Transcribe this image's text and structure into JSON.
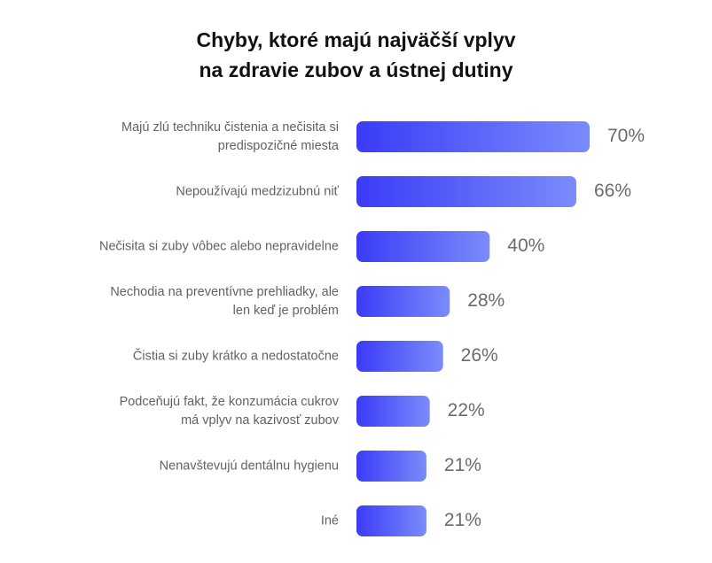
{
  "chart_data": {
    "type": "bar",
    "orientation": "horizontal",
    "title_lines": [
      "Chyby, ktoré majú najväčší vplyv",
      "na zdravie zubov a ústnej dutiny"
    ],
    "categories": [
      [
        "Majú zlú techniku čistenia a nečisita si",
        "predispozičné miesta"
      ],
      [
        "Nepoužívajú medzizubnú niť"
      ],
      [
        "Nečisita si zuby vôbec alebo nepravidelne"
      ],
      [
        "Nechodia na preventívne prehliadky, ale",
        "len keď je problém"
      ],
      [
        "Čistia si zuby krátko a nedostatočne"
      ],
      [
        "Podceňujú fakt, že konzumácia cukrov",
        "má vplyv na kazivosť zubov"
      ],
      [
        "Nenavštevujú dentálnu hygienu"
      ],
      [
        "Iné"
      ]
    ],
    "values": [
      70,
      66,
      40,
      28,
      26,
      22,
      21,
      21
    ],
    "value_labels": [
      "70%",
      "66%",
      "40%",
      "28%",
      "26%",
      "22%",
      "21%",
      "21%"
    ],
    "unit": "%",
    "xlim": [
      0,
      70
    ],
    "grid": false,
    "legend": "none",
    "colors": {
      "bar_start": "#3b3bf7",
      "bar_end": "#7a8cfb",
      "text": "#5f6368",
      "title": "#111111"
    }
  }
}
